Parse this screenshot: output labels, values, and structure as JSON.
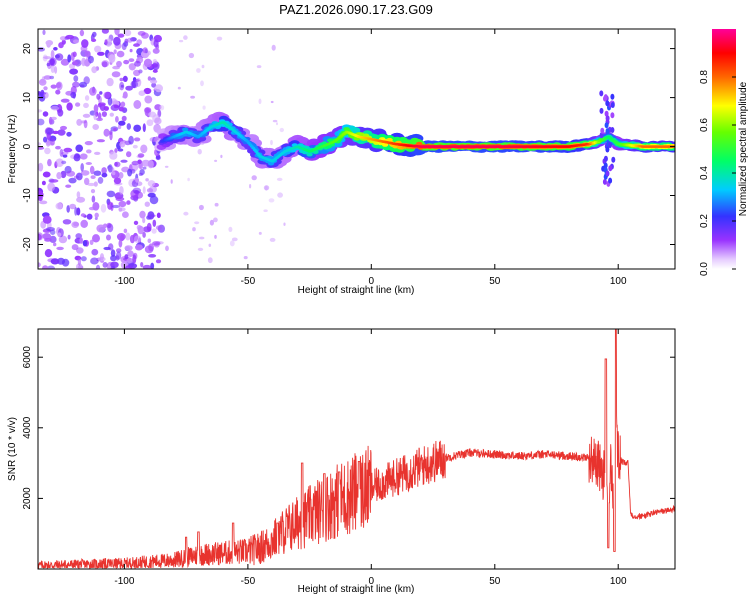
{
  "title": "PAZ1.2026.090.17.23.G09",
  "chart_data": [
    {
      "type": "heatmap",
      "name": "spectrogram",
      "xlabel": "Height of straight line (km)",
      "ylabel": "Frequency (Hz)",
      "xlim": [
        -135,
        123
      ],
      "ylim": [
        -25,
        24
      ],
      "x_ticks": [
        -100,
        -50,
        0,
        50,
        100
      ],
      "y_ticks": [
        -20,
        -10,
        0,
        10,
        20
      ],
      "colorbar": {
        "label": "Normalized spectral amplitude",
        "range": [
          0,
          1
        ],
        "ticks": [
          "0.0",
          "0.2",
          "0.4",
          "0.6",
          "0.8"
        ],
        "tick_values": [
          0.0,
          0.2,
          0.4,
          0.6,
          0.8
        ]
      },
      "ridge": {
        "x": [
          -85,
          -80,
          -75,
          -70,
          -65,
          -60,
          -55,
          -50,
          -45,
          -40,
          -35,
          -30,
          -25,
          -20,
          -15,
          -10,
          -5,
          0,
          5,
          10,
          15,
          20,
          50,
          80,
          88,
          92,
          96,
          100,
          110,
          123
        ],
        "freq": [
          1,
          2,
          3,
          2,
          4,
          5,
          3,
          1,
          -2,
          -3,
          -1,
          0,
          -1,
          0,
          1,
          3,
          2,
          1.5,
          1,
          0.5,
          0.2,
          0,
          0,
          0,
          0.5,
          1,
          2,
          0.5,
          0,
          0
        ],
        "amplitude": [
          0.2,
          0.3,
          0.35,
          0.3,
          0.35,
          0.4,
          0.35,
          0.3,
          0.35,
          0.35,
          0.35,
          0.4,
          0.45,
          0.5,
          0.55,
          0.6,
          0.7,
          0.75,
          0.8,
          0.85,
          0.9,
          0.95,
          0.95,
          0.9,
          0.85,
          0.6,
          0.45,
          0.5,
          0.8,
          0.8
        ]
      },
      "noise_region_x": [
        -135,
        -85
      ]
    },
    {
      "type": "line",
      "name": "snr",
      "xlabel": "Height of straight line (km)",
      "ylabel": "SNR (10 * v/v)",
      "xlim": [
        -135,
        123
      ],
      "ylim": [
        0,
        6800
      ],
      "x_ticks": [
        -100,
        -50,
        0,
        50,
        100
      ],
      "y_ticks": [
        2000,
        4000,
        6000
      ],
      "color": "#e8332e",
      "envelope": {
        "x": [
          -135,
          -100,
          -80,
          -70,
          -60,
          -50,
          -45,
          -40,
          -35,
          -30,
          -25,
          -20,
          -15,
          -10,
          -5,
          0,
          10,
          20,
          30,
          40,
          50,
          60,
          70,
          80,
          88,
          92,
          94,
          95,
          96,
          97,
          98,
          99,
          100,
          102,
          104,
          105,
          106,
          110,
          115,
          123
        ],
        "y": [
          100,
          150,
          250,
          400,
          450,
          500,
          600,
          800,
          1100,
          1300,
          1500,
          1700,
          1900,
          2050,
          2200,
          2300,
          2600,
          2900,
          3150,
          3300,
          3250,
          3200,
          3250,
          3200,
          3150,
          3000,
          2500,
          3600,
          900,
          3000,
          2000,
          4000,
          3200,
          3000,
          3000,
          1600,
          1500,
          1500,
          1600,
          1700
        ]
      },
      "spikes": [
        {
          "x": -75,
          "y": 900
        },
        {
          "x": -70,
          "y": 1050
        },
        {
          "x": -56,
          "y": 1300
        },
        {
          "x": -38,
          "y": 1300
        },
        {
          "x": -28,
          "y": 3000
        },
        {
          "x": -19,
          "y": 2700
        },
        {
          "x": -13,
          "y": 2750
        },
        {
          "x": -5,
          "y": 3050
        },
        {
          "x": 95,
          "y": 5950
        },
        {
          "x": 96,
          "y": 600
        },
        {
          "x": 99,
          "y": 6800
        },
        {
          "x": 98.5,
          "y": 500
        }
      ]
    }
  ]
}
